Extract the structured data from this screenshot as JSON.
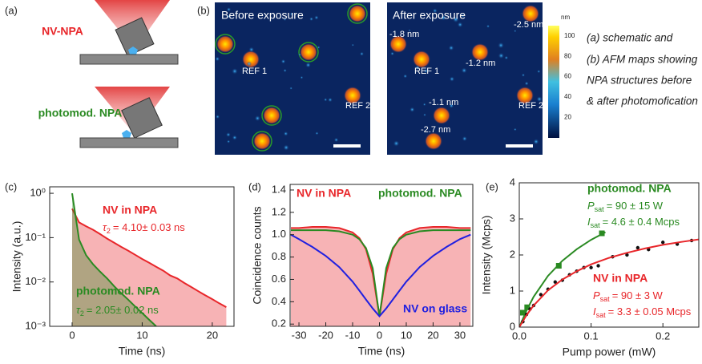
{
  "panels": [
    "(a)",
    "(b)",
    "(c)",
    "(d)",
    "(e)"
  ],
  "schematic": {
    "top_label": "NV-NPA",
    "bottom_label": "photomod. NPA"
  },
  "afm": {
    "before_title": "Before exposure",
    "after_title": "After exposure",
    "before_labels": [
      "REF 1",
      "REF 2"
    ],
    "after_labels": [
      "REF 1",
      "REF 2",
      "-1.8 nm",
      "-2.5 nm",
      "-1.2 nm",
      "-1.1 nm",
      "-2.7 nm"
    ],
    "colorbar": {
      "unit": "nm",
      "ticks": [
        20,
        40,
        60,
        80,
        100
      ]
    }
  },
  "caption": [
    "(a) schematic and",
    "(b) AFM maps showing",
    "NPA structures before",
    "& after photomofication"
  ],
  "chart_data": [
    {
      "type": "line",
      "xlabel": "Time (ns)",
      "ylabel": "Intensity (a.u.)",
      "log_y": true,
      "xlim": [
        -3.2,
        23.1
      ],
      "ylim": [
        0.001,
        1.4
      ],
      "xticks": [
        0,
        10,
        20
      ],
      "yticks": [
        {
          "value": 0.001,
          "label": "10⁻³"
        },
        {
          "value": 0.01,
          "label": "10⁻²"
        },
        {
          "value": 0.1,
          "label": "10⁻¹"
        },
        {
          "value": 1,
          "label": "10⁰"
        }
      ],
      "x": [
        0,
        1,
        2,
        3,
        4,
        5,
        6,
        7,
        8,
        9,
        10,
        11,
        12,
        13,
        14,
        15,
        16,
        17,
        18,
        19,
        20,
        21,
        22
      ],
      "series": [
        {
          "name": "NV in NPA",
          "color": "#e8262a",
          "fill": true,
          "values": [
            0.45,
            0.22,
            0.18,
            0.15,
            0.12,
            0.095,
            0.077,
            0.062,
            0.051,
            0.041,
            0.033,
            0.027,
            0.022,
            0.018,
            0.014,
            0.012,
            0.0095,
            0.0077,
            0.0062,
            0.005,
            0.0041,
            0.0033,
            0.0027
          ],
          "annotations": [
            {
              "symbol": "τ",
              "sub": "2",
              "text": "= 4.10± 0.03 ns"
            }
          ]
        },
        {
          "name": "photomod. NPA",
          "color": "#2a8a22",
          "fill": true,
          "values": [
            1.0,
            0.09,
            0.04,
            0.025,
            0.017,
            0.012,
            0.008,
            0.0056,
            0.004,
            0.0028,
            0.002,
            0.0014,
            0.001,
            null,
            null,
            null,
            null,
            null,
            null,
            null,
            null,
            null,
            null
          ],
          "annotations": [
            {
              "symbol": "τ",
              "sub": "2",
              "text": "= 2.05± 0.02 ns"
            }
          ]
        }
      ]
    },
    {
      "type": "line",
      "xlabel": "Time (ns)",
      "ylabel": "Coincidence counts",
      "xlim": [
        -33.3,
        34.8
      ],
      "ylim": [
        0.18,
        1.45
      ],
      "xticks": [
        -30,
        -20,
        -10,
        0,
        10,
        20,
        30
      ],
      "yticks": [
        0.2,
        0.4,
        0.6,
        0.8,
        {
          "value": 1,
          "label": "1.0"
        },
        1.2,
        1.4
      ],
      "x": [
        -33,
        -30,
        -25,
        -20,
        -15,
        -10,
        -7.5,
        -5,
        -2.5,
        0,
        2.5,
        5,
        7.5,
        10,
        15,
        20,
        25,
        30,
        34
      ],
      "series": [
        {
          "name": "NV in NPA",
          "color": "#e8262a",
          "fill": true,
          "values": [
            1.06,
            1.06,
            1.07,
            1.07,
            1.06,
            1.02,
            0.97,
            0.87,
            0.65,
            0.27,
            0.65,
            0.87,
            0.97,
            1.02,
            1.06,
            1.07,
            1.07,
            1.06,
            1.06
          ]
        },
        {
          "name": "photomod. NPA",
          "color": "#2a8a22",
          "values": [
            1.04,
            1.04,
            1.04,
            1.04,
            1.03,
            1.0,
            0.96,
            0.88,
            0.7,
            0.27,
            0.7,
            0.88,
            0.96,
            1.0,
            1.03,
            1.04,
            1.04,
            1.04,
            1.04
          ]
        },
        {
          "name": "NV on glass",
          "color": "#2020e0",
          "values": [
            1.0,
            0.96,
            0.89,
            0.81,
            0.71,
            0.58,
            0.5,
            0.42,
            0.34,
            0.27,
            0.34,
            0.42,
            0.5,
            0.58,
            0.71,
            0.81,
            0.89,
            0.96,
            1.0
          ]
        }
      ]
    },
    {
      "type": "line",
      "xlabel": "Pump power (mW)",
      "ylabel": "Intensity (Mcps)",
      "xlim": [
        0,
        0.25
      ],
      "ylim": [
        0,
        4
      ],
      "xticks": [
        {
          "value": 0,
          "label": "0.0"
        },
        0.1,
        0.2
      ],
      "yticks": [
        0,
        1,
        2,
        3,
        4
      ],
      "series": [
        {
          "name": "photomod. NPA",
          "color": "#2a8a22",
          "mode": "markers",
          "marker": "square",
          "x": [
            0.005,
            0.011,
            0.055,
            0.115
          ],
          "values": [
            0.4,
            0.55,
            1.7,
            2.6
          ],
          "annotations": [
            {
              "symbol": "P",
              "sub": "sat",
              "text": "= 90 ± 15   W"
            },
            {
              "symbol": "I",
              "sub": "sat",
              "text": "= 4.6 ± 0.4 Mcps"
            }
          ]
        },
        {
          "color": "#2a8a22",
          "mode": "line",
          "x": [
            0,
            0.01,
            0.02,
            0.04,
            0.06,
            0.08,
            0.1,
            0.12
          ],
          "values": [
            0,
            0.46,
            0.84,
            1.42,
            1.84,
            2.16,
            2.42,
            2.63
          ]
        },
        {
          "color": "#111111",
          "mode": "markers",
          "marker": "circle",
          "x": [
            0.005,
            0.01,
            0.015,
            0.02,
            0.03,
            0.04,
            0.05,
            0.06,
            0.07,
            0.08,
            0.09,
            0.1,
            0.11,
            0.13,
            0.15,
            0.165,
            0.18,
            0.2,
            0.22,
            0.24
          ],
          "values": [
            0.15,
            0.35,
            0.5,
            0.6,
            0.9,
            1.05,
            1.25,
            1.3,
            1.45,
            1.55,
            1.65,
            1.65,
            1.7,
            1.95,
            2.0,
            2.2,
            2.15,
            2.35,
            2.3,
            2.4
          ]
        },
        {
          "name": "NV in NPA",
          "color": "#e8262a",
          "mode": "line",
          "x": [
            0,
            0.01,
            0.02,
            0.04,
            0.06,
            0.08,
            0.1,
            0.125,
            0.15,
            0.175,
            0.2,
            0.225,
            0.25
          ],
          "values": [
            0,
            0.33,
            0.6,
            1.02,
            1.32,
            1.55,
            1.74,
            1.92,
            2.06,
            2.18,
            2.28,
            2.36,
            2.43
          ],
          "annotations": [
            {
              "symbol": "P",
              "sub": "sat",
              "text": "= 90 ± 3   W"
            },
            {
              "symbol": "I",
              "sub": "sat",
              "text": "= 3.3 ± 0.05 Mcps"
            }
          ]
        }
      ]
    }
  ]
}
